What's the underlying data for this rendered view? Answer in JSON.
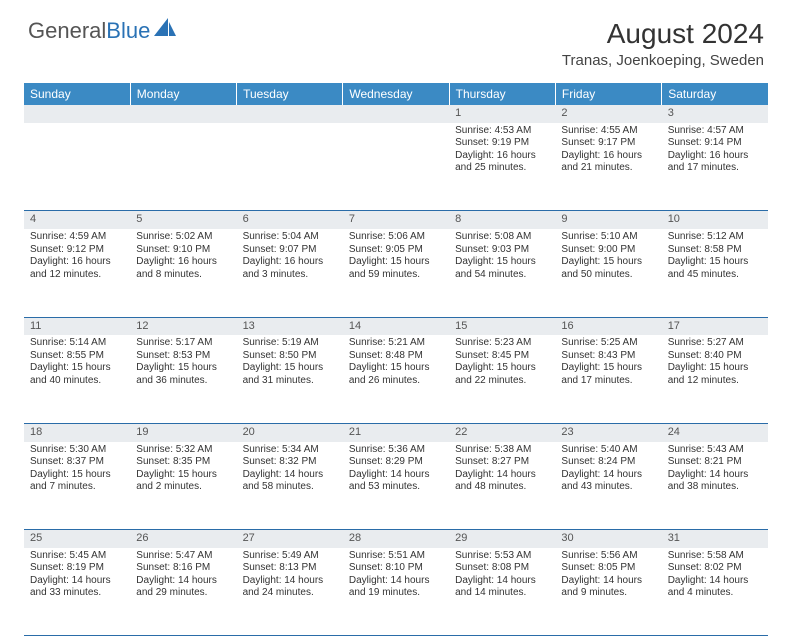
{
  "logo": {
    "text1": "General",
    "text2": "Blue"
  },
  "title": "August 2024",
  "location": "Tranas, Joenkoeping, Sweden",
  "colors": {
    "header_bg": "#3b8ac4",
    "daynum_bg": "#e9ecef",
    "row_border": "#2a6ca8",
    "logo_gray": "#555555",
    "logo_blue": "#2a72b5"
  },
  "day_headers": [
    "Sunday",
    "Monday",
    "Tuesday",
    "Wednesday",
    "Thursday",
    "Friday",
    "Saturday"
  ],
  "weeks": [
    {
      "nums": [
        "",
        "",
        "",
        "",
        "1",
        "2",
        "3"
      ],
      "cells": [
        null,
        null,
        null,
        null,
        {
          "sr": "Sunrise: 4:53 AM",
          "ss": "Sunset: 9:19 PM",
          "d1": "Daylight: 16 hours",
          "d2": "and 25 minutes."
        },
        {
          "sr": "Sunrise: 4:55 AM",
          "ss": "Sunset: 9:17 PM",
          "d1": "Daylight: 16 hours",
          "d2": "and 21 minutes."
        },
        {
          "sr": "Sunrise: 4:57 AM",
          "ss": "Sunset: 9:14 PM",
          "d1": "Daylight: 16 hours",
          "d2": "and 17 minutes."
        }
      ]
    },
    {
      "nums": [
        "4",
        "5",
        "6",
        "7",
        "8",
        "9",
        "10"
      ],
      "cells": [
        {
          "sr": "Sunrise: 4:59 AM",
          "ss": "Sunset: 9:12 PM",
          "d1": "Daylight: 16 hours",
          "d2": "and 12 minutes."
        },
        {
          "sr": "Sunrise: 5:02 AM",
          "ss": "Sunset: 9:10 PM",
          "d1": "Daylight: 16 hours",
          "d2": "and 8 minutes."
        },
        {
          "sr": "Sunrise: 5:04 AM",
          "ss": "Sunset: 9:07 PM",
          "d1": "Daylight: 16 hours",
          "d2": "and 3 minutes."
        },
        {
          "sr": "Sunrise: 5:06 AM",
          "ss": "Sunset: 9:05 PM",
          "d1": "Daylight: 15 hours",
          "d2": "and 59 minutes."
        },
        {
          "sr": "Sunrise: 5:08 AM",
          "ss": "Sunset: 9:03 PM",
          "d1": "Daylight: 15 hours",
          "d2": "and 54 minutes."
        },
        {
          "sr": "Sunrise: 5:10 AM",
          "ss": "Sunset: 9:00 PM",
          "d1": "Daylight: 15 hours",
          "d2": "and 50 minutes."
        },
        {
          "sr": "Sunrise: 5:12 AM",
          "ss": "Sunset: 8:58 PM",
          "d1": "Daylight: 15 hours",
          "d2": "and 45 minutes."
        }
      ]
    },
    {
      "nums": [
        "11",
        "12",
        "13",
        "14",
        "15",
        "16",
        "17"
      ],
      "cells": [
        {
          "sr": "Sunrise: 5:14 AM",
          "ss": "Sunset: 8:55 PM",
          "d1": "Daylight: 15 hours",
          "d2": "and 40 minutes."
        },
        {
          "sr": "Sunrise: 5:17 AM",
          "ss": "Sunset: 8:53 PM",
          "d1": "Daylight: 15 hours",
          "d2": "and 36 minutes."
        },
        {
          "sr": "Sunrise: 5:19 AM",
          "ss": "Sunset: 8:50 PM",
          "d1": "Daylight: 15 hours",
          "d2": "and 31 minutes."
        },
        {
          "sr": "Sunrise: 5:21 AM",
          "ss": "Sunset: 8:48 PM",
          "d1": "Daylight: 15 hours",
          "d2": "and 26 minutes."
        },
        {
          "sr": "Sunrise: 5:23 AM",
          "ss": "Sunset: 8:45 PM",
          "d1": "Daylight: 15 hours",
          "d2": "and 22 minutes."
        },
        {
          "sr": "Sunrise: 5:25 AM",
          "ss": "Sunset: 8:43 PM",
          "d1": "Daylight: 15 hours",
          "d2": "and 17 minutes."
        },
        {
          "sr": "Sunrise: 5:27 AM",
          "ss": "Sunset: 8:40 PM",
          "d1": "Daylight: 15 hours",
          "d2": "and 12 minutes."
        }
      ]
    },
    {
      "nums": [
        "18",
        "19",
        "20",
        "21",
        "22",
        "23",
        "24"
      ],
      "cells": [
        {
          "sr": "Sunrise: 5:30 AM",
          "ss": "Sunset: 8:37 PM",
          "d1": "Daylight: 15 hours",
          "d2": "and 7 minutes."
        },
        {
          "sr": "Sunrise: 5:32 AM",
          "ss": "Sunset: 8:35 PM",
          "d1": "Daylight: 15 hours",
          "d2": "and 2 minutes."
        },
        {
          "sr": "Sunrise: 5:34 AM",
          "ss": "Sunset: 8:32 PM",
          "d1": "Daylight: 14 hours",
          "d2": "and 58 minutes."
        },
        {
          "sr": "Sunrise: 5:36 AM",
          "ss": "Sunset: 8:29 PM",
          "d1": "Daylight: 14 hours",
          "d2": "and 53 minutes."
        },
        {
          "sr": "Sunrise: 5:38 AM",
          "ss": "Sunset: 8:27 PM",
          "d1": "Daylight: 14 hours",
          "d2": "and 48 minutes."
        },
        {
          "sr": "Sunrise: 5:40 AM",
          "ss": "Sunset: 8:24 PM",
          "d1": "Daylight: 14 hours",
          "d2": "and 43 minutes."
        },
        {
          "sr": "Sunrise: 5:43 AM",
          "ss": "Sunset: 8:21 PM",
          "d1": "Daylight: 14 hours",
          "d2": "and 38 minutes."
        }
      ]
    },
    {
      "nums": [
        "25",
        "26",
        "27",
        "28",
        "29",
        "30",
        "31"
      ],
      "cells": [
        {
          "sr": "Sunrise: 5:45 AM",
          "ss": "Sunset: 8:19 PM",
          "d1": "Daylight: 14 hours",
          "d2": "and 33 minutes."
        },
        {
          "sr": "Sunrise: 5:47 AM",
          "ss": "Sunset: 8:16 PM",
          "d1": "Daylight: 14 hours",
          "d2": "and 29 minutes."
        },
        {
          "sr": "Sunrise: 5:49 AM",
          "ss": "Sunset: 8:13 PM",
          "d1": "Daylight: 14 hours",
          "d2": "and 24 minutes."
        },
        {
          "sr": "Sunrise: 5:51 AM",
          "ss": "Sunset: 8:10 PM",
          "d1": "Daylight: 14 hours",
          "d2": "and 19 minutes."
        },
        {
          "sr": "Sunrise: 5:53 AM",
          "ss": "Sunset: 8:08 PM",
          "d1": "Daylight: 14 hours",
          "d2": "and 14 minutes."
        },
        {
          "sr": "Sunrise: 5:56 AM",
          "ss": "Sunset: 8:05 PM",
          "d1": "Daylight: 14 hours",
          "d2": "and 9 minutes."
        },
        {
          "sr": "Sunrise: 5:58 AM",
          "ss": "Sunset: 8:02 PM",
          "d1": "Daylight: 14 hours",
          "d2": "and 4 minutes."
        }
      ]
    }
  ]
}
